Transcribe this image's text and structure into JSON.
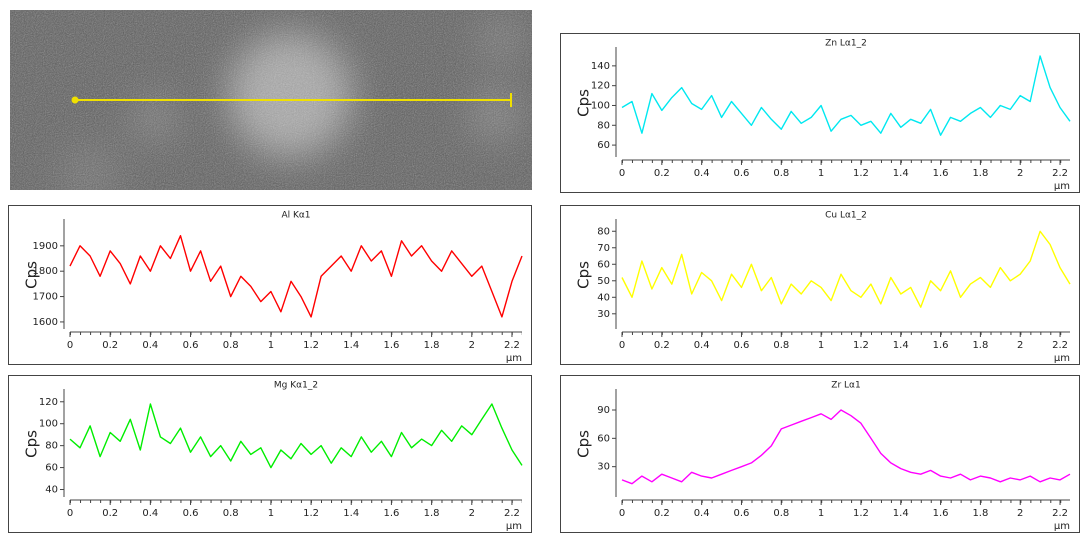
{
  "chart_data": [
    {
      "type": "line",
      "title": "Zn Lα1_2",
      "x_label": "µm",
      "y_label": "Cps",
      "color": "#00e8f0",
      "x": [
        0,
        0.05,
        0.1,
        0.15,
        0.2,
        0.25,
        0.3,
        0.35,
        0.4,
        0.45,
        0.5,
        0.55,
        0.6,
        0.65,
        0.7,
        0.75,
        0.8,
        0.85,
        0.9,
        0.95,
        1,
        1.05,
        1.1,
        1.15,
        1.2,
        1.25,
        1.3,
        1.35,
        1.4,
        1.45,
        1.5,
        1.55,
        1.6,
        1.65,
        1.7,
        1.75,
        1.8,
        1.85,
        1.9,
        1.95,
        2,
        2.05,
        2.1,
        2.15,
        2.2,
        2.25
      ],
      "values": [
        98,
        104,
        72,
        112,
        95,
        108,
        118,
        102,
        96,
        110,
        88,
        104,
        92,
        80,
        98,
        86,
        76,
        94,
        82,
        88,
        100,
        74,
        86,
        90,
        80,
        84,
        72,
        92,
        78,
        86,
        82,
        96,
        70,
        88,
        84,
        92,
        98,
        88,
        100,
        96,
        110,
        104,
        150,
        118,
        98,
        84
      ],
      "xlim": [
        0,
        2.25
      ],
      "xticks": [
        0,
        0.2,
        0.4,
        0.6,
        0.8,
        1,
        1.2,
        1.4,
        1.6,
        1.8,
        2,
        2.2
      ],
      "ylim": [
        50,
        155
      ],
      "yticks": [
        60,
        80,
        100,
        120,
        140
      ]
    },
    {
      "type": "line",
      "title": "Al Kα1",
      "x_label": "µm",
      "y_label": "Cps",
      "color": "#ff0000",
      "x": [
        0,
        0.05,
        0.1,
        0.15,
        0.2,
        0.25,
        0.3,
        0.35,
        0.4,
        0.45,
        0.5,
        0.55,
        0.6,
        0.65,
        0.7,
        0.75,
        0.8,
        0.85,
        0.9,
        0.95,
        1,
        1.05,
        1.1,
        1.15,
        1.2,
        1.25,
        1.3,
        1.35,
        1.4,
        1.45,
        1.5,
        1.55,
        1.6,
        1.65,
        1.7,
        1.75,
        1.8,
        1.85,
        1.9,
        1.95,
        2,
        2.05,
        2.1,
        2.15,
        2.2,
        2.25
      ],
      "values": [
        1820,
        1900,
        1860,
        1780,
        1880,
        1830,
        1750,
        1860,
        1800,
        1900,
        1850,
        1940,
        1800,
        1880,
        1760,
        1820,
        1700,
        1780,
        1740,
        1680,
        1720,
        1640,
        1760,
        1700,
        1620,
        1780,
        1820,
        1860,
        1800,
        1900,
        1840,
        1880,
        1780,
        1920,
        1860,
        1900,
        1840,
        1800,
        1880,
        1830,
        1780,
        1820,
        1720,
        1620,
        1760,
        1860
      ],
      "xlim": [
        0,
        2.25
      ],
      "xticks": [
        0,
        0.2,
        0.4,
        0.6,
        0.8,
        1,
        1.2,
        1.4,
        1.6,
        1.8,
        2,
        2.2
      ],
      "ylim": [
        1580,
        1990
      ],
      "yticks": [
        1600,
        1700,
        1800,
        1900
      ]
    },
    {
      "type": "line",
      "title": "Cu Lα1_2",
      "x_label": "µm",
      "y_label": "Cps",
      "color": "#ffff00",
      "x": [
        0,
        0.05,
        0.1,
        0.15,
        0.2,
        0.25,
        0.3,
        0.35,
        0.4,
        0.45,
        0.5,
        0.55,
        0.6,
        0.65,
        0.7,
        0.75,
        0.8,
        0.85,
        0.9,
        0.95,
        1,
        1.05,
        1.1,
        1.15,
        1.2,
        1.25,
        1.3,
        1.35,
        1.4,
        1.45,
        1.5,
        1.55,
        1.6,
        1.65,
        1.7,
        1.75,
        1.8,
        1.85,
        1.9,
        1.95,
        2,
        2.05,
        2.1,
        2.15,
        2.2,
        2.25
      ],
      "values": [
        52,
        40,
        62,
        45,
        58,
        48,
        66,
        42,
        55,
        50,
        38,
        54,
        46,
        60,
        44,
        52,
        36,
        48,
        42,
        50,
        46,
        38,
        54,
        44,
        40,
        48,
        36,
        52,
        42,
        46,
        34,
        50,
        44,
        56,
        40,
        48,
        52,
        46,
        58,
        50,
        54,
        62,
        80,
        72,
        58,
        48
      ],
      "xlim": [
        0,
        2.25
      ],
      "xticks": [
        0,
        0.2,
        0.4,
        0.6,
        0.8,
        1,
        1.2,
        1.4,
        1.6,
        1.8,
        2,
        2.2
      ],
      "ylim": [
        22,
        85
      ],
      "yticks": [
        30,
        40,
        50,
        60,
        70,
        80
      ]
    },
    {
      "type": "line",
      "title": "Mg Kα1_2",
      "x_label": "µm",
      "y_label": "Cps",
      "color": "#00ee00",
      "x": [
        0,
        0.05,
        0.1,
        0.15,
        0.2,
        0.25,
        0.3,
        0.35,
        0.4,
        0.45,
        0.5,
        0.55,
        0.6,
        0.65,
        0.7,
        0.75,
        0.8,
        0.85,
        0.9,
        0.95,
        1,
        1.05,
        1.1,
        1.15,
        1.2,
        1.25,
        1.3,
        1.35,
        1.4,
        1.45,
        1.5,
        1.55,
        1.6,
        1.65,
        1.7,
        1.75,
        1.8,
        1.85,
        1.9,
        1.95,
        2,
        2.05,
        2.1,
        2.15,
        2.2,
        2.25
      ],
      "values": [
        86,
        78,
        98,
        70,
        92,
        84,
        104,
        76,
        118,
        88,
        82,
        96,
        74,
        88,
        70,
        80,
        66,
        84,
        72,
        78,
        60,
        76,
        68,
        82,
        72,
        80,
        64,
        78,
        70,
        88,
        74,
        84,
        70,
        92,
        78,
        86,
        80,
        94,
        84,
        98,
        90,
        104,
        118,
        96,
        76,
        62
      ],
      "xlim": [
        0,
        2.25
      ],
      "xticks": [
        0,
        0.2,
        0.4,
        0.6,
        0.8,
        1,
        1.2,
        1.4,
        1.6,
        1.8,
        2,
        2.2
      ],
      "ylim": [
        35,
        128
      ],
      "yticks": [
        40,
        60,
        80,
        100,
        120
      ]
    },
    {
      "type": "line",
      "title": "Zr Lα1",
      "x_label": "µm",
      "y_label": "Cps",
      "color": "#ff00ff",
      "x": [
        0,
        0.05,
        0.1,
        0.15,
        0.2,
        0.25,
        0.3,
        0.35,
        0.4,
        0.45,
        0.5,
        0.55,
        0.6,
        0.65,
        0.7,
        0.75,
        0.8,
        0.85,
        0.9,
        0.95,
        1,
        1.05,
        1.1,
        1.15,
        1.2,
        1.25,
        1.3,
        1.35,
        1.4,
        1.45,
        1.5,
        1.55,
        1.6,
        1.65,
        1.7,
        1.75,
        1.8,
        1.85,
        1.9,
        1.95,
        2,
        2.05,
        2.1,
        2.15,
        2.2,
        2.25
      ],
      "values": [
        16,
        12,
        20,
        14,
        22,
        18,
        14,
        24,
        20,
        18,
        22,
        26,
        30,
        34,
        42,
        52,
        70,
        74,
        78,
        82,
        86,
        80,
        90,
        84,
        76,
        60,
        44,
        34,
        28,
        24,
        22,
        26,
        20,
        18,
        22,
        16,
        20,
        18,
        14,
        18,
        16,
        20,
        14,
        18,
        16,
        22
      ],
      "xlim": [
        0,
        2.25
      ],
      "xticks": [
        0,
        0.2,
        0.4,
        0.6,
        0.8,
        1,
        1.2,
        1.4,
        1.6,
        1.8,
        2,
        2.2
      ],
      "ylim": [
        0,
        108
      ],
      "yticks": [
        30,
        60,
        90
      ]
    }
  ]
}
